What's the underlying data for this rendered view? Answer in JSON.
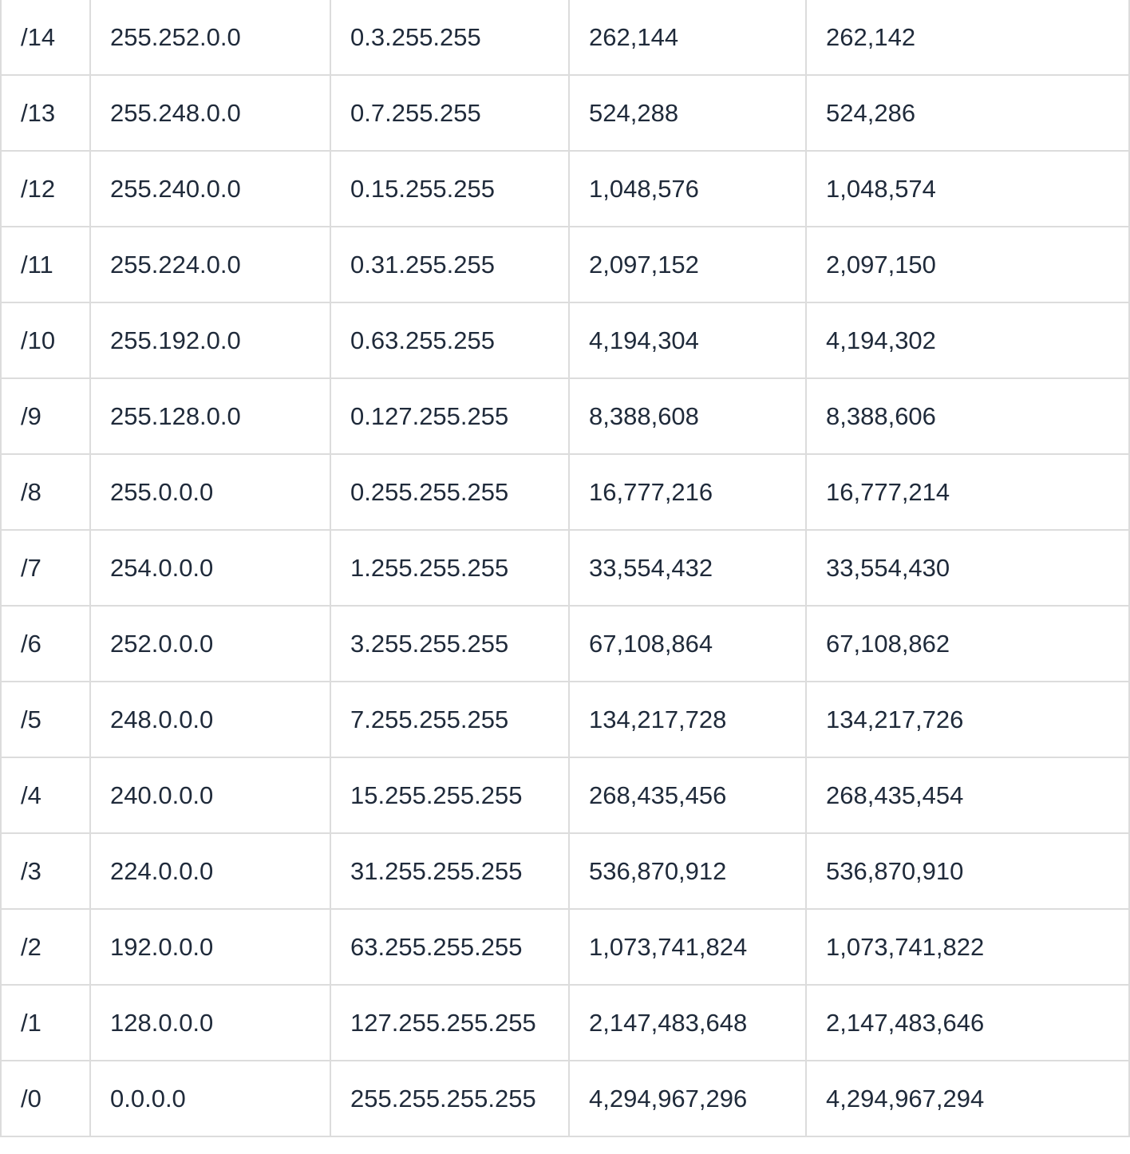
{
  "table": {
    "rows": [
      [
        "/14",
        "255.252.0.0",
        "0.3.255.255",
        "262,144",
        "262,142"
      ],
      [
        "/13",
        "255.248.0.0",
        "0.7.255.255",
        "524,288",
        "524,286"
      ],
      [
        "/12",
        "255.240.0.0",
        "0.15.255.255",
        "1,048,576",
        "1,048,574"
      ],
      [
        "/11",
        "255.224.0.0",
        "0.31.255.255",
        "2,097,152",
        "2,097,150"
      ],
      [
        "/10",
        "255.192.0.0",
        "0.63.255.255",
        "4,194,304",
        "4,194,302"
      ],
      [
        "/9",
        "255.128.0.0",
        "0.127.255.255",
        "8,388,608",
        "8,388,606"
      ],
      [
        "/8",
        "255.0.0.0",
        "0.255.255.255",
        "16,777,216",
        "16,777,214"
      ],
      [
        "/7",
        "254.0.0.0",
        "1.255.255.255",
        "33,554,432",
        "33,554,430"
      ],
      [
        "/6",
        "252.0.0.0",
        "3.255.255.255",
        "67,108,864",
        "67,108,862"
      ],
      [
        "/5",
        "248.0.0.0",
        "7.255.255.255",
        "134,217,728",
        "134,217,726"
      ],
      [
        "/4",
        "240.0.0.0",
        "15.255.255.255",
        "268,435,456",
        "268,435,454"
      ],
      [
        "/3",
        "224.0.0.0",
        "31.255.255.255",
        "536,870,912",
        "536,870,910"
      ],
      [
        "/2",
        "192.0.0.0",
        "63.255.255.255",
        "1,073,741,824",
        "1,073,741,822"
      ],
      [
        "/1",
        "128.0.0.0",
        "127.255.255.255",
        "2,147,483,648",
        "2,147,483,646"
      ],
      [
        "/0",
        "0.0.0.0",
        "255.255.255.255",
        "4,294,967,296",
        "4,294,967,294"
      ]
    ]
  }
}
